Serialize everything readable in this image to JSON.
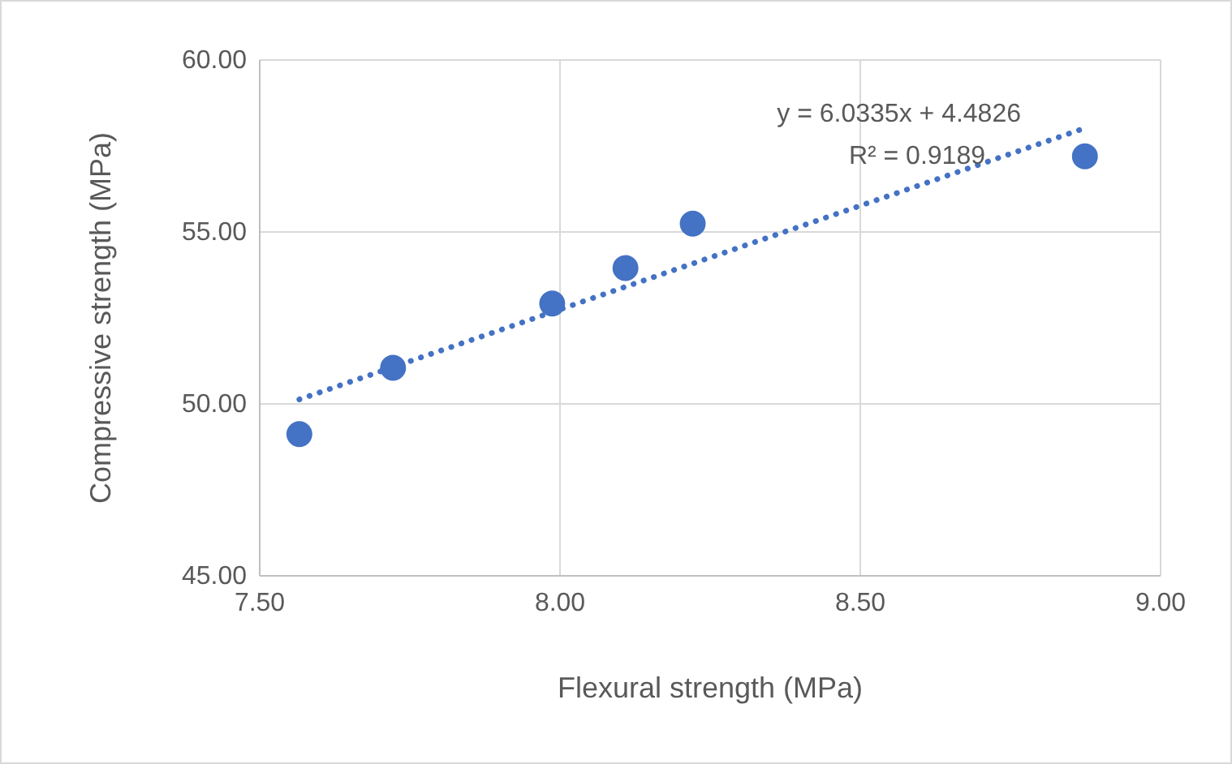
{
  "chart_data": {
    "type": "scatter",
    "xlabel": "Flexural strength (MPa)",
    "ylabel": "Compressive strength (MPa)",
    "xlim": [
      7.5,
      9.0
    ],
    "xticks": [
      {
        "value": 7.5,
        "label": "7.50"
      },
      {
        "value": 8.0,
        "label": "8.00"
      },
      {
        "value": 8.5,
        "label": "8.50"
      },
      {
        "value": 9.0,
        "label": "9.00"
      }
    ],
    "ylim": [
      45,
      60
    ],
    "yticks": [
      {
        "value": 45,
        "label": "45.00"
      },
      {
        "value": 50,
        "label": "50.00"
      },
      {
        "value": 55,
        "label": "55.00"
      },
      {
        "value": 60,
        "label": "60.00"
      }
    ],
    "grid": true,
    "series": [
      {
        "marker": "circle",
        "color": "#4472c4",
        "x": [
          7.566,
          7.722,
          7.987,
          8.109,
          8.221,
          8.874
        ],
        "values": [
          49.12,
          51.05,
          52.92,
          53.95,
          55.24,
          57.2
        ]
      },
      {
        "type": "line",
        "color": "#4472c4",
        "line_style": "dotted",
        "x": [
          7.566,
          8.874
        ],
        "values": [
          50.13,
          58.02
        ]
      }
    ],
    "annotations": [
      "y = 6.0335x + 4.4826",
      "R² = 0.9189"
    ]
  }
}
